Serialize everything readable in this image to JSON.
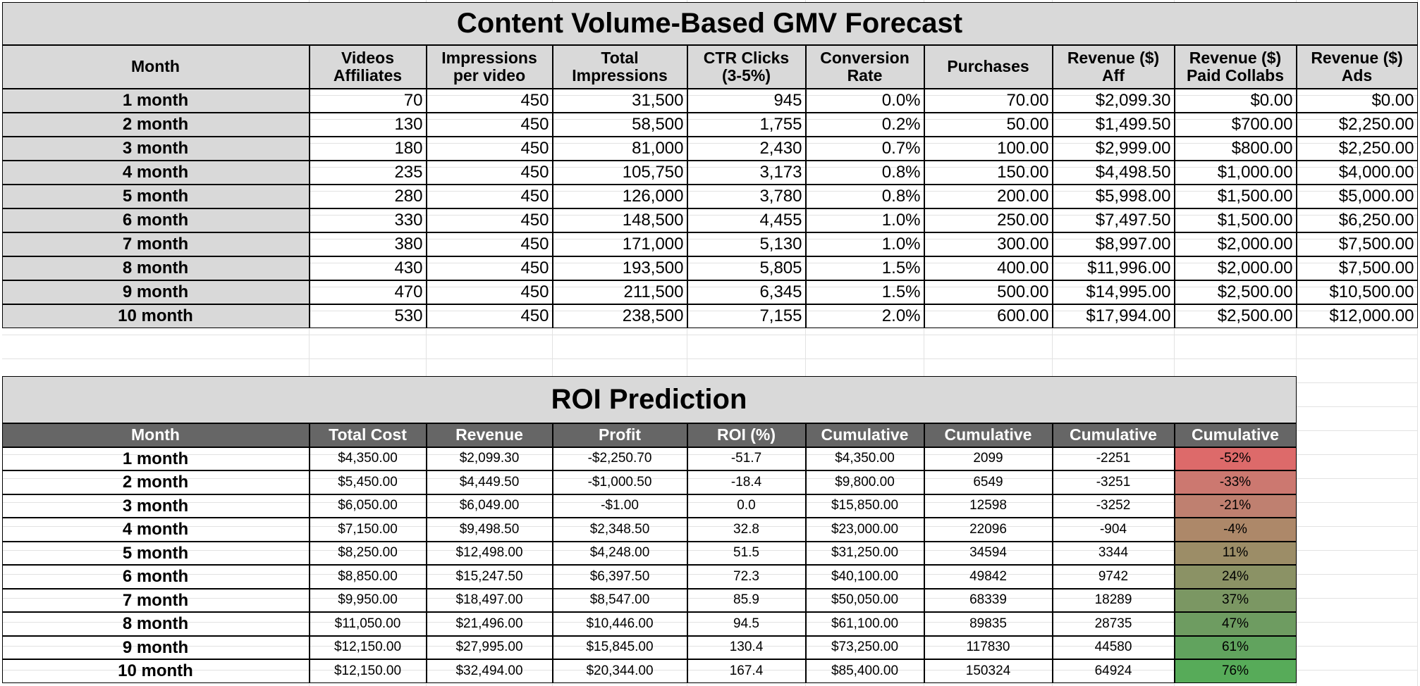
{
  "table1": {
    "title": "Content Volume-Based GMV Forecast",
    "headers": [
      "Month",
      "Videos\nAffiliates",
      "Impressions\nper video",
      "Total\nImpressions",
      "CTR Clicks\n(3-5%)",
      "Conversion\nRate",
      "Purchases",
      "Revenue ($)\nAff",
      "Revenue ($)\nPaid Collabs",
      "Revenue ($)\nAds"
    ],
    "rows": [
      [
        "1 month",
        "70",
        "450",
        "31,500",
        "945",
        "0.0%",
        "70.00",
        "$2,099.30",
        "$0.00",
        "$0.00"
      ],
      [
        "2 month",
        "130",
        "450",
        "58,500",
        "1,755",
        "0.2%",
        "50.00",
        "$1,499.50",
        "$700.00",
        "$2,250.00"
      ],
      [
        "3 month",
        "180",
        "450",
        "81,000",
        "2,430",
        "0.7%",
        "100.00",
        "$2,999.00",
        "$800.00",
        "$2,250.00"
      ],
      [
        "4 month",
        "235",
        "450",
        "105,750",
        "3,173",
        "0.8%",
        "150.00",
        "$4,498.50",
        "$1,000.00",
        "$4,000.00"
      ],
      [
        "5 month",
        "280",
        "450",
        "126,000",
        "3,780",
        "0.8%",
        "200.00",
        "$5,998.00",
        "$1,500.00",
        "$5,000.00"
      ],
      [
        "6 month",
        "330",
        "450",
        "148,500",
        "4,455",
        "1.0%",
        "250.00",
        "$7,497.50",
        "$1,500.00",
        "$6,250.00"
      ],
      [
        "7 month",
        "380",
        "450",
        "171,000",
        "5,130",
        "1.0%",
        "300.00",
        "$8,997.00",
        "$2,000.00",
        "$7,500.00"
      ],
      [
        "8 month",
        "430",
        "450",
        "193,500",
        "5,805",
        "1.5%",
        "400.00",
        "$11,996.00",
        "$2,000.00",
        "$7,500.00"
      ],
      [
        "9 month",
        "470",
        "450",
        "211,500",
        "6,345",
        "1.5%",
        "500.00",
        "$14,995.00",
        "$2,500.00",
        "$10,500.00"
      ],
      [
        "10 month",
        "530",
        "450",
        "238,500",
        "7,155",
        "2.0%",
        "600.00",
        "$17,994.00",
        "$2,500.00",
        "$12,000.00"
      ]
    ]
  },
  "table2": {
    "title": "ROI Prediction",
    "headers": [
      "Month",
      "Total Cost",
      "Revenue",
      "Profit",
      "ROI (%)",
      "Cumulative",
      "Cumulative",
      "Cumulative",
      "Cumulative"
    ],
    "rows": [
      [
        "1 month",
        "$4,350.00",
        "$2,099.30",
        "-$2,250.70",
        "-51.7",
        "$4,350.00",
        "2099",
        "-2251",
        "-52%"
      ],
      [
        "2 month",
        "$5,450.00",
        "$4,449.50",
        "-$1,000.50",
        "-18.4",
        "$9,800.00",
        "6549",
        "-3251",
        "-33%"
      ],
      [
        "3 month",
        "$6,050.00",
        "$6,049.00",
        "-$1.00",
        "0.0",
        "$15,850.00",
        "12598",
        "-3252",
        "-21%"
      ],
      [
        "4 month",
        "$7,150.00",
        "$9,498.50",
        "$2,348.50",
        "32.8",
        "$23,000.00",
        "22096",
        "-904",
        "-4%"
      ],
      [
        "5 month",
        "$8,250.00",
        "$12,498.00",
        "$4,248.00",
        "51.5",
        "$31,250.00",
        "34594",
        "3344",
        "11%"
      ],
      [
        "6 month",
        "$8,850.00",
        "$15,247.50",
        "$6,397.50",
        "72.3",
        "$40,100.00",
        "49842",
        "9742",
        "24%"
      ],
      [
        "7 month",
        "$9,950.00",
        "$18,497.00",
        "$8,547.00",
        "85.9",
        "$50,050.00",
        "68339",
        "18289",
        "37%"
      ],
      [
        "8 month",
        "$11,050.00",
        "$21,496.00",
        "$10,446.00",
        "94.5",
        "$61,100.00",
        "89835",
        "28735",
        "47%"
      ],
      [
        "9 month",
        "$12,150.00",
        "$27,995.00",
        "$15,845.00",
        "130.4",
        "$73,250.00",
        "117830",
        "44580",
        "61%"
      ],
      [
        "10 month",
        "$12,150.00",
        "$32,494.00",
        "$20,344.00",
        "167.4",
        "$85,400.00",
        "150324",
        "64924",
        "76%"
      ]
    ],
    "cumulative_colors": [
      "#dd6a6a",
      "#cc7870",
      "#bf8070",
      "#ad8869",
      "#9c8d67",
      "#8b9265",
      "#7b9763",
      "#6e9c61",
      "#61a35e",
      "#57ab59"
    ]
  }
}
